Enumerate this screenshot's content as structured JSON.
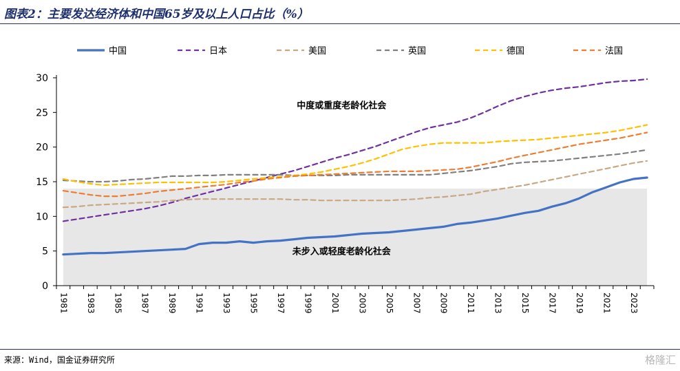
{
  "header": {
    "title": "图表2：主要发达经济体和中国65岁及以上人口占比（%）"
  },
  "footer": {
    "source": "来源：Wind，国金证券研究所",
    "watermark": "格隆汇"
  },
  "colors": {
    "title": "#1d2f6d",
    "rule": "#1d2f6d",
    "shade": "#e7e7e7"
  },
  "chart_data": {
    "type": "line",
    "title": "",
    "xlabel": "",
    "ylabel": "",
    "ylim": [
      0,
      30
    ],
    "yticks": [
      0,
      5,
      10,
      15,
      20,
      25,
      30
    ],
    "xlim": [
      1981,
      2024
    ],
    "xticks": [
      "1981",
      "1983",
      "1985",
      "1987",
      "1989",
      "1991",
      "1993",
      "1995",
      "1997",
      "1999",
      "2001",
      "2003",
      "2005",
      "2007",
      "2009",
      "2011",
      "2013",
      "2015",
      "2017",
      "2019",
      "2021",
      "2023"
    ],
    "shade_band": {
      "from": 0,
      "to": 14
    },
    "annotations": [
      {
        "text": "中度或重度老龄化社会",
        "x": 2001.5,
        "y": 25.6
      },
      {
        "text": "未步入或轻度老龄化社会",
        "x": 2001.5,
        "y": 4.5
      }
    ],
    "grid": false,
    "legend_position": "top",
    "x": [
      1981,
      1982,
      1983,
      1984,
      1985,
      1986,
      1987,
      1988,
      1989,
      1990,
      1991,
      1992,
      1993,
      1994,
      1995,
      1996,
      1997,
      1998,
      1999,
      2000,
      2001,
      2002,
      2003,
      2004,
      2005,
      2006,
      2007,
      2008,
      2009,
      2010,
      2011,
      2012,
      2013,
      2014,
      2015,
      2016,
      2017,
      2018,
      2019,
      2020,
      2021,
      2022,
      2023,
      2024
    ],
    "series": [
      {
        "name": "中国",
        "color": "#4472c4",
        "dash": "solid",
        "width": 3.2,
        "values": [
          4.5,
          4.6,
          4.7,
          4.7,
          4.8,
          4.9,
          5.0,
          5.1,
          5.2,
          5.3,
          6.0,
          6.2,
          6.2,
          6.4,
          6.2,
          6.4,
          6.5,
          6.7,
          6.9,
          7.0,
          7.1,
          7.3,
          7.5,
          7.6,
          7.7,
          7.9,
          8.1,
          8.3,
          8.5,
          8.9,
          9.1,
          9.4,
          9.7,
          10.1,
          10.5,
          10.8,
          11.4,
          11.9,
          12.6,
          13.5,
          14.2,
          14.9,
          15.4,
          15.6
        ]
      },
      {
        "name": "日本",
        "color": "#7030a0",
        "dash": "dashed",
        "width": 2.2,
        "values": [
          9.3,
          9.6,
          9.9,
          10.2,
          10.5,
          10.8,
          11.1,
          11.5,
          12.0,
          12.6,
          13.1,
          13.6,
          14.1,
          14.6,
          15.1,
          15.6,
          16.1,
          16.6,
          17.2,
          17.8,
          18.4,
          18.9,
          19.5,
          20.1,
          20.8,
          21.5,
          22.2,
          22.8,
          23.2,
          23.6,
          24.2,
          25.0,
          25.9,
          26.7,
          27.3,
          27.8,
          28.2,
          28.5,
          28.7,
          29.0,
          29.3,
          29.5,
          29.6,
          29.8
        ]
      },
      {
        "name": "美国",
        "color": "#c8a882",
        "dash": "dashed",
        "width": 2.2,
        "values": [
          11.3,
          11.4,
          11.6,
          11.7,
          11.8,
          11.9,
          12.0,
          12.1,
          12.3,
          12.4,
          12.5,
          12.5,
          12.5,
          12.5,
          12.5,
          12.5,
          12.5,
          12.4,
          12.4,
          12.3,
          12.3,
          12.3,
          12.3,
          12.3,
          12.3,
          12.4,
          12.5,
          12.7,
          12.8,
          13.0,
          13.2,
          13.6,
          13.9,
          14.2,
          14.5,
          14.9,
          15.3,
          15.7,
          16.1,
          16.5,
          16.9,
          17.3,
          17.7,
          18.0
        ]
      },
      {
        "name": "英国",
        "color": "#7f7f7f",
        "dash": "dashed",
        "width": 2.2,
        "values": [
          15.2,
          15.1,
          15.0,
          15.0,
          15.1,
          15.3,
          15.4,
          15.6,
          15.8,
          15.8,
          15.9,
          15.9,
          16.0,
          16.0,
          16.0,
          16.0,
          16.0,
          15.9,
          15.9,
          15.9,
          15.9,
          16.0,
          16.0,
          16.0,
          16.0,
          16.0,
          16.0,
          16.0,
          16.2,
          16.4,
          16.6,
          16.9,
          17.2,
          17.6,
          17.8,
          17.9,
          18.0,
          18.2,
          18.4,
          18.6,
          18.8,
          19.0,
          19.3,
          19.6
        ]
      },
      {
        "name": "德国",
        "color": "#ffc000",
        "dash": "dashed",
        "width": 2.2,
        "values": [
          15.4,
          15.0,
          14.7,
          14.5,
          14.6,
          14.7,
          14.8,
          14.9,
          14.9,
          14.9,
          14.9,
          14.9,
          15.0,
          15.2,
          15.4,
          15.6,
          15.7,
          15.9,
          16.1,
          16.4,
          16.8,
          17.2,
          17.7,
          18.3,
          19.0,
          19.7,
          20.1,
          20.4,
          20.6,
          20.6,
          20.6,
          20.6,
          20.8,
          20.9,
          21.0,
          21.1,
          21.3,
          21.5,
          21.7,
          21.9,
          22.1,
          22.4,
          22.8,
          23.2
        ]
      },
      {
        "name": "法国",
        "color": "#ed7d31",
        "dash": "dashed",
        "width": 2.2,
        "values": [
          13.7,
          13.4,
          13.1,
          12.9,
          12.9,
          13.1,
          13.3,
          13.6,
          13.8,
          14.0,
          14.2,
          14.4,
          14.6,
          14.9,
          15.1,
          15.4,
          15.6,
          15.8,
          15.9,
          16.0,
          16.1,
          16.2,
          16.3,
          16.4,
          16.5,
          16.5,
          16.5,
          16.6,
          16.7,
          16.8,
          17.1,
          17.5,
          17.9,
          18.4,
          18.8,
          19.2,
          19.6,
          20.0,
          20.4,
          20.7,
          21.0,
          21.3,
          21.7,
          22.1
        ]
      }
    ]
  }
}
